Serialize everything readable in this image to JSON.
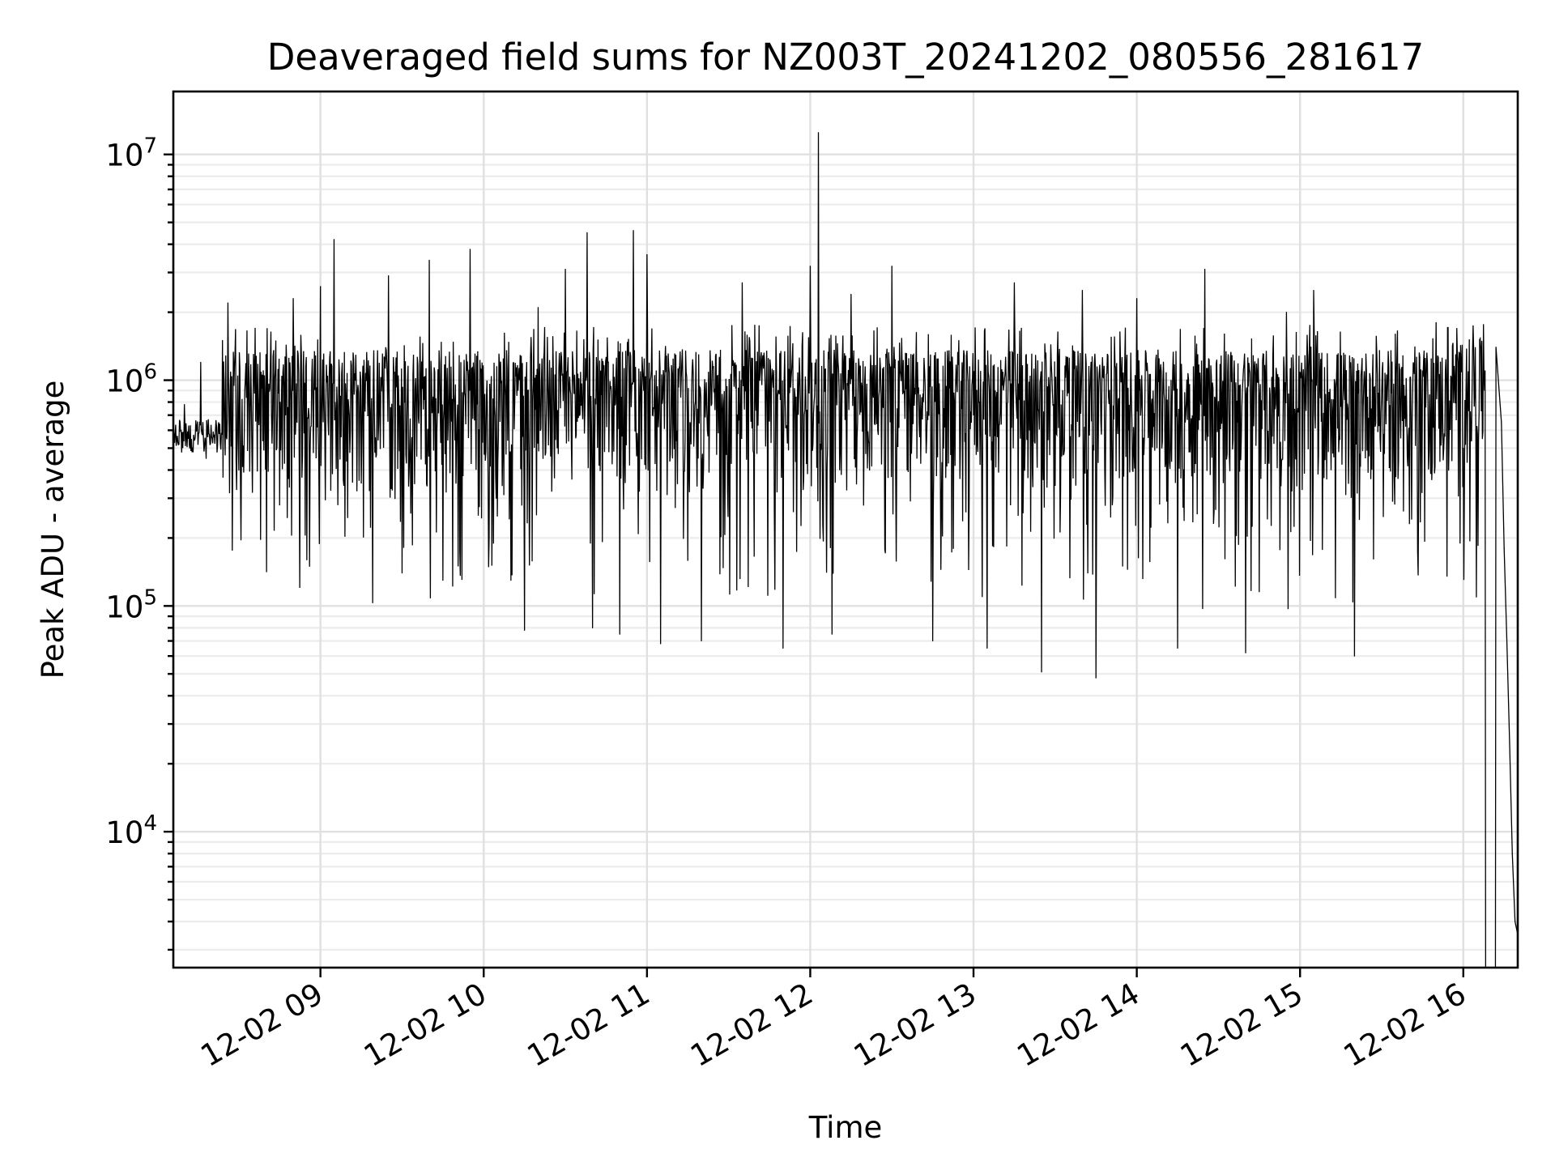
{
  "chart_data": {
    "type": "line",
    "title": "Deaveraged field sums for NZ003T_20241202_080556_281617",
    "xlabel": "Time",
    "ylabel": "Peak ADU - average",
    "yscale": "log",
    "ylim": [
      2500,
      19000000
    ],
    "xlim": [
      "2024-12-02 08:05:56",
      "2024-12-02 16:20:00"
    ],
    "xticks": [
      "12-02 09",
      "12-02 10",
      "12-02 11",
      "12-02 12",
      "12-02 13",
      "12-02 14",
      "12-02 15",
      "12-02 16"
    ],
    "yticks": [
      {
        "base": "10",
        "exp": "4",
        "value": 10000
      },
      {
        "base": "10",
        "exp": "5",
        "value": 100000
      },
      {
        "base": "10",
        "exp": "6",
        "value": 1000000
      },
      {
        "base": "10",
        "exp": "7",
        "value": 10000000
      }
    ],
    "grid": true,
    "series": [
      {
        "color": "#000000",
        "points": [
          [
            "2024-12-02 08:06",
            600000
          ],
          [
            "2024-12-02 08:08",
            520000
          ],
          [
            "2024-12-02 08:10",
            780000
          ],
          [
            "2024-12-02 08:12",
            500000
          ],
          [
            "2024-12-02 08:14",
            560000
          ],
          [
            "2024-12-02 08:16",
            1200000
          ],
          [
            "2024-12-02 08:18",
            450000
          ],
          [
            "2024-12-02 08:20",
            560000
          ],
          [
            "2024-12-02 08:22",
            480000
          ],
          [
            "2024-12-02 08:24",
            1500000
          ],
          [
            "2024-12-02 08:26",
            2200000
          ],
          [
            "2024-12-02 08:30",
            400000
          ],
          [
            "2024-12-02 08:40",
            1300000
          ],
          [
            "2024-12-02 08:45",
            280000
          ],
          [
            "2024-12-02 08:50",
            2300000
          ],
          [
            "2024-12-02 08:55",
            160000
          ],
          [
            "2024-12-02 09:00",
            2600000
          ],
          [
            "2024-12-02 09:05",
            4200000
          ],
          [
            "2024-12-02 09:15",
            350000
          ],
          [
            "2024-12-02 09:25",
            2900000
          ],
          [
            "2024-12-02 09:30",
            140000
          ],
          [
            "2024-12-02 09:40",
            3400000
          ],
          [
            "2024-12-02 09:45",
            130000
          ],
          [
            "2024-12-02 09:55",
            3800000
          ],
          [
            "2024-12-02 10:05",
            250000
          ],
          [
            "2024-12-02 10:10",
            130000
          ],
          [
            "2024-12-02 10:15",
            78000
          ],
          [
            "2024-12-02 10:20",
            2100000
          ],
          [
            "2024-12-02 10:30",
            3100000
          ],
          [
            "2024-12-02 10:38",
            4500000
          ],
          [
            "2024-12-02 10:40",
            80000
          ],
          [
            "2024-12-02 10:50",
            75000
          ],
          [
            "2024-12-02 10:55",
            4600000
          ],
          [
            "2024-12-02 11:00",
            3600000
          ],
          [
            "2024-12-02 11:05",
            68000
          ],
          [
            "2024-12-02 11:20",
            70000
          ],
          [
            "2024-12-02 11:35",
            2700000
          ],
          [
            "2024-12-02 11:50",
            65000
          ],
          [
            "2024-12-02 12:00",
            3200000
          ],
          [
            "2024-12-02 12:03",
            12500000
          ],
          [
            "2024-12-02 12:08",
            75000
          ],
          [
            "2024-12-02 12:15",
            2400000
          ],
          [
            "2024-12-02 12:30",
            3200000
          ],
          [
            "2024-12-02 12:45",
            70000
          ],
          [
            "2024-12-02 13:05",
            65000
          ],
          [
            "2024-12-02 13:15",
            2700000
          ],
          [
            "2024-12-02 13:25",
            51000
          ],
          [
            "2024-12-02 13:40",
            2500000
          ],
          [
            "2024-12-02 13:45",
            48000
          ],
          [
            "2024-12-02 14:00",
            2300000
          ],
          [
            "2024-12-02 14:15",
            65000
          ],
          [
            "2024-12-02 14:25",
            3100000
          ],
          [
            "2024-12-02 14:40",
            62000
          ],
          [
            "2024-12-02 14:55",
            2000000
          ],
          [
            "2024-12-02 15:05",
            2500000
          ],
          [
            "2024-12-02 15:20",
            60000
          ],
          [
            "2024-12-02 15:35",
            1600000
          ],
          [
            "2024-12-02 15:50",
            1800000
          ],
          [
            "2024-12-02 16:00",
            500000
          ],
          [
            "2024-12-02 16:08",
            1100000
          ],
          [
            "2024-12-02 16:12",
            1400000
          ],
          [
            "2024-12-02 16:14",
            650000
          ],
          [
            "2024-12-02 16:15",
            180000
          ],
          [
            "2024-12-02 16:16",
            70000
          ],
          [
            "2024-12-02 16:17",
            25000
          ],
          [
            "2024-12-02 16:18",
            8000
          ],
          [
            "2024-12-02 16:19",
            4000
          ],
          [
            "2024-12-02 16:20",
            3500
          ]
        ]
      }
    ]
  }
}
